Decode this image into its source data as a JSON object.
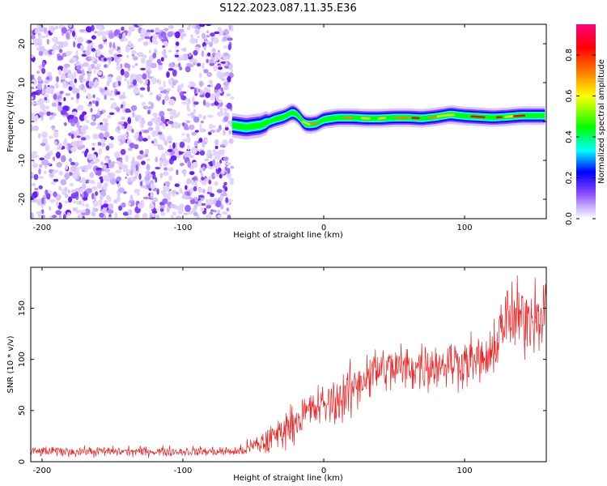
{
  "title": "S122.2023.087.11.35.E36",
  "chart_data": [
    {
      "type": "heatmap",
      "xlabel": "Height of straight line (km)",
      "ylabel": "Frequency (Hz)",
      "xlim": [
        -208,
        158
      ],
      "ylim": [
        -25,
        25
      ],
      "xticks": [
        "-200",
        "-100",
        "0",
        "100"
      ],
      "yticks": [
        "-20",
        "-10",
        "0",
        "10",
        "20"
      ],
      "ridge": {
        "x": [
          -65,
          -55,
          -45,
          -35,
          -28,
          -22,
          -18,
          -14,
          -10,
          -5,
          0,
          10,
          20,
          30,
          40,
          50,
          60,
          70,
          80,
          90,
          100,
          110,
          120,
          130,
          140,
          150,
          158
        ],
        "y": [
          -1,
          -1.5,
          -1,
          0.5,
          1.2,
          2.4,
          1.5,
          -0.5,
          -0.8,
          -0.5,
          0.5,
          1,
          1,
          0.8,
          0.8,
          1,
          1,
          0.8,
          1.2,
          1.8,
          1.4,
          1.2,
          1,
          1.2,
          1.5,
          1.5,
          1.5
        ]
      },
      "noise_region_x": [
        -208,
        -65
      ],
      "colorbar": {
        "label": "Normalized spectral amplitude",
        "range": [
          0,
          0.95
        ],
        "ticks": [
          "0.0",
          "0.2",
          "0.4",
          "0.6",
          "0.8"
        ],
        "colors": [
          "#ffffff",
          "#c8b0ff",
          "#8040ff",
          "#0000ff",
          "#00ffff",
          "#00ff00",
          "#ffff00",
          "#ff8000",
          "#ff0000",
          "#ff0080"
        ]
      },
      "grid": false
    },
    {
      "type": "line",
      "xlabel": "Height of straight line (km)",
      "ylabel": "SNR (10 * v/v)",
      "xlim": [
        -208,
        158
      ],
      "ylim": [
        0,
        190
      ],
      "xticks": [
        "-200",
        "-100",
        "0",
        "100"
      ],
      "yticks": [
        "0",
        "50",
        "100",
        "150"
      ],
      "series_color": "#ee2222",
      "trend": {
        "x": [
          -208,
          -60,
          -50,
          -40,
          -30,
          -20,
          -10,
          0,
          10,
          20,
          30,
          40,
          60,
          80,
          100,
          120,
          125,
          140,
          158
        ],
        "y": [
          10,
          10,
          15,
          20,
          30,
          40,
          50,
          55,
          60,
          70,
          85,
          90,
          92,
          95,
          98,
          100,
          135,
          140,
          150
        ]
      },
      "spread": {
        "x": [
          -208,
          -60,
          -40,
          0,
          20,
          40,
          120,
          125,
          158
        ],
        "y": [
          8,
          8,
          25,
          35,
          45,
          40,
          40,
          60,
          60
        ]
      },
      "grid": false
    }
  ]
}
